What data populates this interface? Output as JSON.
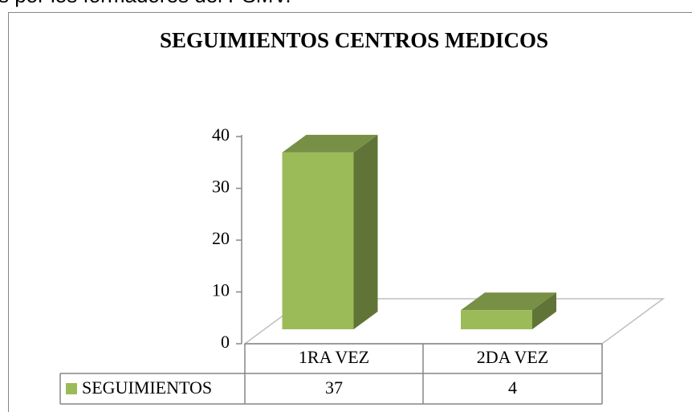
{
  "page_text": "s por los formadores del PSMV.",
  "chart_data": {
    "type": "bar3d",
    "title": "SEGUIMIENTOS CENTROS MEDICOS",
    "categories": [
      "1RA VEZ",
      "2DA VEZ"
    ],
    "series": [
      {
        "name": "SEGUIMIENTOS",
        "color": "#9bbb59",
        "values": [
          37,
          4
        ]
      }
    ],
    "ylim": [
      0,
      40
    ],
    "yticks": [
      0,
      10,
      20,
      30,
      40
    ],
    "grid": false,
    "data_table": true
  }
}
